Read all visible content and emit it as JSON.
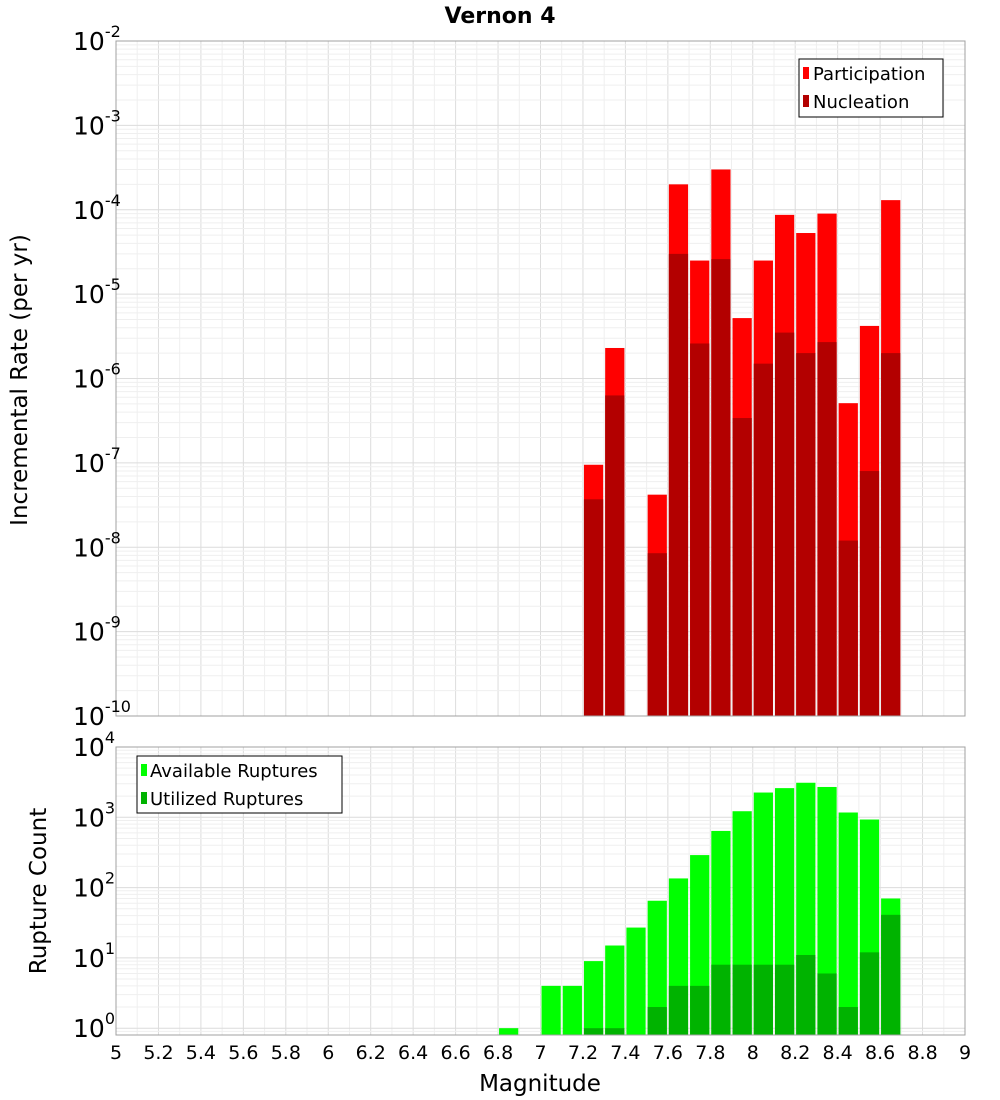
{
  "chart_data": [
    {
      "type": "bar",
      "title": "Vernon 4",
      "ylabel": "Incremental Rate (per yr)",
      "xlabel": "",
      "xlim": [
        5,
        9
      ],
      "ylim": [
        1e-10,
        0.01
      ],
      "yscale": "log",
      "ytick_exponents": [
        -10,
        -9,
        -8,
        -7,
        -6,
        -5,
        -4,
        -3,
        -2
      ],
      "bin_width": 0.1,
      "grid": true,
      "legend_position": "top-right",
      "series": [
        {
          "name": "Participation",
          "color": "#ff0000",
          "x": [
            7.25,
            7.35,
            7.55,
            7.65,
            7.75,
            7.85,
            7.95,
            8.05,
            8.15,
            8.25,
            8.35,
            8.45,
            8.55,
            8.65
          ],
          "values": [
            9.5e-08,
            2.3e-06,
            4.2e-08,
            0.0002,
            2.5e-05,
            0.0003,
            5.2e-06,
            2.5e-05,
            8.7e-05,
            5.3e-05,
            9e-05,
            5.1e-07,
            4.2e-06,
            0.00013
          ]
        },
        {
          "name": "Nucleation",
          "color": "#b30000",
          "x": [
            7.25,
            7.35,
            7.55,
            7.65,
            7.75,
            7.85,
            7.95,
            8.05,
            8.15,
            8.25,
            8.35,
            8.45,
            8.55,
            8.65
          ],
          "values": [
            3.7e-08,
            6.3e-07,
            8.5e-09,
            3e-05,
            2.6e-06,
            2.6e-05,
            3.4e-07,
            1.5e-06,
            3.5e-06,
            2e-06,
            2.7e-06,
            1.2e-08,
            8e-08,
            2e-06
          ]
        }
      ]
    },
    {
      "type": "bar",
      "title": "",
      "ylabel": "Rupture Count",
      "xlabel": "Magnitude",
      "xlim": [
        5,
        9
      ],
      "ylim": [
        0.8,
        10000
      ],
      "yscale": "log",
      "ytick_exponents": [
        0,
        1,
        2,
        3,
        4
      ],
      "xticks": [
        "5",
        "5.2",
        "5.4",
        "5.6",
        "5.8",
        "6",
        "6.2",
        "6.4",
        "6.6",
        "6.8",
        "7",
        "7.2",
        "7.4",
        "7.6",
        "7.8",
        "8",
        "8.2",
        "8.4",
        "8.6",
        "8.8",
        "9"
      ],
      "bin_width": 0.1,
      "grid": true,
      "legend_position": "top-left",
      "series": [
        {
          "name": "Available Ruptures",
          "color": "#00ff00",
          "x": [
            6.85,
            7.05,
            7.15,
            7.25,
            7.35,
            7.45,
            7.55,
            7.65,
            7.75,
            7.85,
            7.95,
            8.05,
            8.15,
            8.25,
            8.35,
            8.45,
            8.55,
            8.65
          ],
          "values": [
            1,
            4,
            4,
            9,
            15,
            27,
            65,
            135,
            290,
            640,
            1220,
            2250,
            2600,
            3100,
            2700,
            1170,
            930,
            70
          ]
        },
        {
          "name": "Utilized Ruptures",
          "color": "#00b300",
          "x": [
            7.25,
            7.35,
            7.55,
            7.65,
            7.75,
            7.85,
            7.95,
            8.05,
            8.15,
            8.25,
            8.35,
            8.45,
            8.55,
            8.65
          ],
          "values": [
            1,
            1,
            2,
            4,
            4,
            8,
            8,
            8,
            8,
            11,
            6,
            2,
            12,
            41
          ]
        }
      ]
    }
  ]
}
